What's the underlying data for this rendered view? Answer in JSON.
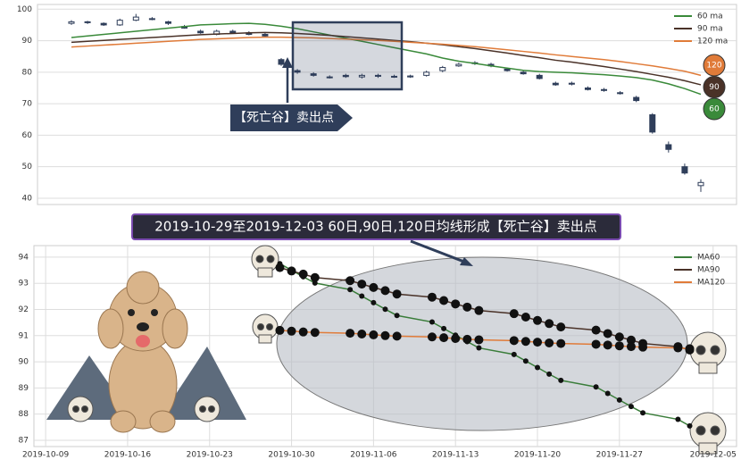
{
  "chart_data": [
    {
      "type": "candlestick",
      "open": [
        95.5,
        96,
        95.5,
        95,
        96.5,
        97,
        96,
        94.5,
        93,
        92,
        93,
        92.5,
        92,
        84,
        80.5,
        79.5,
        78.5,
        79,
        78.5,
        79,
        78.7,
        78.5,
        79,
        80.5,
        82,
        83,
        82.5,
        81,
        80,
        79,
        76.5,
        76.5,
        75,
        74.5,
        73.5,
        72,
        66.5,
        57,
        50,
        44
      ],
      "close": [
        96,
        95.8,
        95,
        96.5,
        97.5,
        96.8,
        95.5,
        94,
        92.5,
        93,
        92.5,
        92,
        91.5,
        82.5,
        80,
        79,
        78.5,
        78.6,
        79,
        78.7,
        78.5,
        78.8,
        80,
        81.5,
        82.5,
        82.8,
        82,
        80.5,
        79.5,
        78,
        76,
        76.2,
        74.5,
        74.2,
        73.2,
        71,
        61,
        55.5,
        48,
        45
      ],
      "high": [
        96.5,
        96.3,
        95.8,
        97,
        98.5,
        97.5,
        96.3,
        95,
        93.5,
        93.5,
        93.5,
        93,
        92.5,
        84.5,
        81,
        80,
        79,
        79.5,
        79.5,
        79.5,
        79.2,
        79.2,
        80.5,
        82,
        83,
        83.5,
        83,
        81.5,
        80.5,
        79.5,
        77,
        77,
        75.5,
        75,
        74,
        72.5,
        67,
        58,
        51,
        46
      ],
      "low": [
        95,
        95.3,
        94.7,
        94.7,
        96.2,
        96.5,
        95,
        93.8,
        92.2,
        91.7,
        92.2,
        91.7,
        91,
        82,
        79.5,
        78.6,
        78,
        78.2,
        78,
        78.2,
        78.2,
        78.2,
        78.6,
        80,
        81.7,
        82.3,
        81.6,
        80.2,
        79.2,
        77.7,
        75.7,
        75.8,
        74.2,
        73.8,
        72.9,
        70.5,
        60.5,
        54.5,
        47.5,
        42
      ],
      "candle_color": "#2f3e5a",
      "series": [
        {
          "name": "60 ma",
          "color": "#3a8a3a",
          "values": [
            91,
            91.5,
            92,
            92.5,
            93,
            93.5,
            94,
            94.5,
            95,
            95.2,
            95.4,
            95.5,
            95.2,
            94.6,
            93.8,
            92.8,
            91.8,
            90.8,
            89.8,
            88.8,
            87.8,
            86.8,
            85.8,
            84.5,
            83.5,
            82.8,
            82,
            81.3,
            80.6,
            80.2,
            80,
            79.8,
            79.5,
            79.2,
            78.8,
            78.3,
            77.5,
            76.3,
            74.8,
            73
          ]
        },
        {
          "name": "90 ma",
          "color": "#4a3228",
          "values": [
            89.5,
            89.8,
            90.1,
            90.4,
            90.7,
            91,
            91.3,
            91.6,
            91.9,
            92.1,
            92.3,
            92.5,
            92.6,
            92.5,
            92.3,
            92,
            91.7,
            91.3,
            90.9,
            90.5,
            90.1,
            89.7,
            89.2,
            88.7,
            88.1,
            87.5,
            86.8,
            86.1,
            85.3,
            84.6,
            83.8,
            83.2,
            82.5,
            81.8,
            81,
            80.2,
            79.3,
            78.4,
            77.3,
            76
          ]
        },
        {
          "name": "120 ma",
          "color": "#e07b39",
          "values": [
            88,
            88.3,
            88.6,
            88.9,
            89.2,
            89.5,
            89.8,
            90.1,
            90.4,
            90.6,
            90.8,
            91,
            91.1,
            91.1,
            91,
            90.9,
            90.7,
            90.5,
            90.3,
            90.1,
            89.8,
            89.5,
            89.2,
            88.9,
            88.5,
            88.1,
            87.6,
            87.1,
            86.6,
            86.1,
            85.5,
            85,
            84.5,
            84,
            83.4,
            82.7,
            82,
            81.2,
            80.3,
            79
          ]
        }
      ],
      "ylim": [
        38,
        101.5
      ],
      "yticks": [
        40,
        50,
        60,
        70,
        80,
        90,
        100
      ],
      "grid": true,
      "annotation": "【死亡谷】卖出点",
      "end_labels": [
        "120",
        "90",
        "60"
      ]
    },
    {
      "type": "line",
      "title": "2019-10-29至2019-12-03 60日,90日,120日均线形成【死亡谷】卖出点",
      "x": [
        "2019-10-29",
        "2019-10-30",
        "2019-10-31",
        "2019-11-01",
        "2019-11-04",
        "2019-11-05",
        "2019-11-06",
        "2019-11-07",
        "2019-11-08",
        "2019-11-11",
        "2019-11-12",
        "2019-11-13",
        "2019-11-14",
        "2019-11-15",
        "2019-11-18",
        "2019-11-19",
        "2019-11-20",
        "2019-11-21",
        "2019-11-22",
        "2019-11-25",
        "2019-11-26",
        "2019-11-27",
        "2019-11-28",
        "2019-11-29",
        "2019-12-02",
        "2019-12-03"
      ],
      "series": [
        {
          "name": "MA60",
          "color": "#3a7d3a",
          "values": [
            93.75,
            93.5,
            93.25,
            93.01,
            92.76,
            92.51,
            92.26,
            92.01,
            91.77,
            91.52,
            91.27,
            91.02,
            90.77,
            90.53,
            90.28,
            90.03,
            89.78,
            89.53,
            89.29,
            89.04,
            88.79,
            88.54,
            88.29,
            88.05,
            87.8,
            87.55
          ]
        },
        {
          "name": "MA90",
          "color": "#4a3228",
          "values": [
            93.6,
            93.47,
            93.35,
            93.22,
            93.1,
            92.97,
            92.84,
            92.72,
            92.59,
            92.47,
            92.34,
            92.21,
            92.09,
            91.96,
            91.84,
            91.71,
            91.58,
            91.46,
            91.33,
            91.21,
            91.08,
            90.95,
            90.83,
            90.7,
            90.58,
            90.45
          ]
        },
        {
          "name": "MA120",
          "color": "#e07b39",
          "values": [
            91.2,
            91.17,
            91.14,
            91.12,
            91.09,
            91.06,
            91.03,
            91,
            90.98,
            90.95,
            90.92,
            90.89,
            90.86,
            90.84,
            90.81,
            90.78,
            90.75,
            90.72,
            90.7,
            90.67,
            90.64,
            90.61,
            90.58,
            90.56,
            90.53,
            90.5
          ]
        }
      ],
      "xlim": [
        "2019-10-08",
        "2019-12-07"
      ],
      "xticks": [
        "2019-10-09",
        "2019-10-16",
        "2019-10-23",
        "2019-10-30",
        "2019-11-06",
        "2019-11-13",
        "2019-11-20",
        "2019-11-27",
        "2019-12-05"
      ],
      "ylim": [
        86.76,
        94.44
      ],
      "yticks": [
        87,
        88,
        89,
        90,
        91,
        92,
        93,
        94
      ],
      "grid": true
    }
  ]
}
